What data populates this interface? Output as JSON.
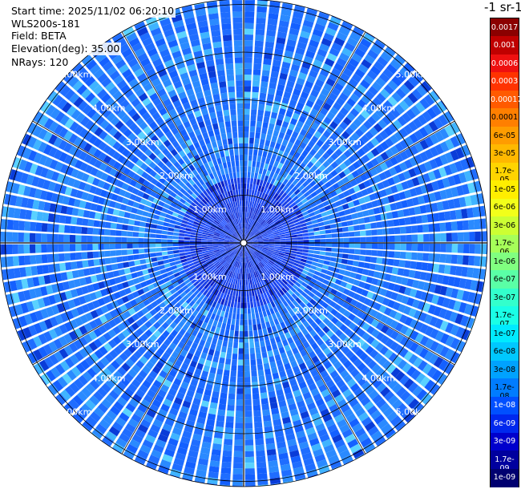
{
  "header": {
    "start_time": "Start time: 2025/11/02 06:20:10",
    "instrument": "WLS200s-181",
    "field": "Field: BETA",
    "elevation": "Elevation(deg): 35.00",
    "nrays": "NRays: 120"
  },
  "colorbar": {
    "title": "-1 sr-1",
    "labels": [
      "0.0017",
      "0.001",
      "0.0006",
      "0.0003",
      "0.00017",
      "0.0001",
      "6e-05",
      "3e-05",
      "1.7e-05",
      "1e-05",
      "6e-06",
      "3e-06",
      "1.7e-06",
      "1e-06",
      "6e-07",
      "3e-07",
      "1.7e-07",
      "1e-07",
      "6e-08",
      "3e-08",
      "1.7e-08",
      "1e-08",
      "6e-09",
      "3e-09",
      "1.7e-09",
      "1e-09"
    ],
    "colors": [
      "#8b0000",
      "#c00000",
      "#ee1010",
      "#ff3300",
      "#ff5a00",
      "#ff7f00",
      "#ff9c00",
      "#ffb800",
      "#ffd400",
      "#ffee00",
      "#f2ff1a",
      "#ccff33",
      "#a6ff59",
      "#80ff80",
      "#5affa6",
      "#33ffcc",
      "#1affe6",
      "#00eaff",
      "#00c8ff",
      "#00a2ff",
      "#007cff",
      "#0050ff",
      "#0028ee",
      "#0000cc",
      "#00009e",
      "#000070"
    ]
  },
  "chart_data": {
    "type": "heatmap",
    "projection": "polar-ppi",
    "n_rays": 120,
    "range_rings_km": [
      1,
      2,
      3,
      4,
      5
    ],
    "ring_labels": [
      "1.00km",
      "2.00km",
      "3.00km",
      "4.00km",
      "5.00km"
    ],
    "max_range_km": 5.5,
    "field": "BETA",
    "dominant_value_range": [
      "3e-08",
      "1e-07"
    ],
    "near_center_value_range": [
      "1e-08",
      "3e-08"
    ]
  }
}
